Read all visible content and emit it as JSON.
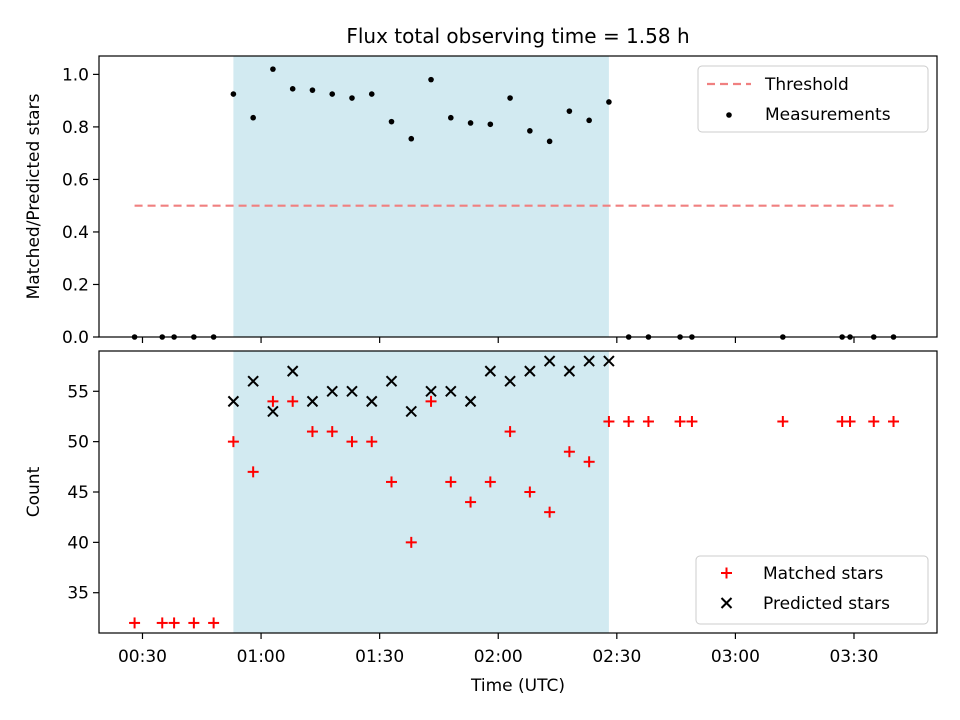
{
  "title": "Flux total observing time = 1.58 h",
  "xlabel": "Time (UTC)",
  "x_ticks": [
    "00:30",
    "01:00",
    "01:30",
    "02:00",
    "02:30",
    "03:00",
    "03:30"
  ],
  "colors": {
    "threshold": "#f08080",
    "measurements": "#000000",
    "matched": "#ff0000",
    "predicted": "#000000",
    "span": "#add8e6"
  },
  "chart_data": [
    {
      "type": "scatter",
      "ylabel": "Matched/Predicted stars",
      "xlim": [
        "00:19",
        "03:51"
      ],
      "ylim": [
        0,
        1.07
      ],
      "y_ticks": [
        "0.0",
        "0.2",
        "0.4",
        "0.6",
        "0.8",
        "1.0"
      ],
      "shaded_span": [
        "00:53",
        "02:28"
      ],
      "legend_position": "upper right",
      "grid": false,
      "threshold": {
        "name": "Threshold",
        "y": 0.5,
        "x_range": [
          "00:28",
          "03:40"
        ]
      },
      "series": [
        {
          "name": "Measurements",
          "points": [
            [
              "00:28",
              0.0
            ],
            [
              "00:35",
              0.0
            ],
            [
              "00:38",
              0.0
            ],
            [
              "00:43",
              0.0
            ],
            [
              "00:48",
              0.0
            ],
            [
              "00:53",
              0.925
            ],
            [
              "00:58",
              0.835
            ],
            [
              "01:03",
              1.02
            ],
            [
              "01:08",
              0.945
            ],
            [
              "01:13",
              0.94
            ],
            [
              "01:18",
              0.925
            ],
            [
              "01:23",
              0.91
            ],
            [
              "01:28",
              0.925
            ],
            [
              "01:33",
              0.82
            ],
            [
              "01:38",
              0.755
            ],
            [
              "01:43",
              0.98
            ],
            [
              "01:48",
              0.835
            ],
            [
              "01:53",
              0.815
            ],
            [
              "01:58",
              0.81
            ],
            [
              "02:03",
              0.91
            ],
            [
              "02:08",
              0.785
            ],
            [
              "02:13",
              0.745
            ],
            [
              "02:18",
              0.86
            ],
            [
              "02:23",
              0.825
            ],
            [
              "02:28",
              0.895
            ],
            [
              "02:33",
              0.0
            ],
            [
              "02:38",
              0.0
            ],
            [
              "02:46",
              0.0
            ],
            [
              "02:49",
              0.0
            ],
            [
              "03:12",
              0.0
            ],
            [
              "03:27",
              0.0
            ],
            [
              "03:29",
              0.0
            ],
            [
              "03:35",
              0.0
            ],
            [
              "03:40",
              0.0
            ]
          ]
        }
      ]
    },
    {
      "type": "scatter",
      "ylabel": "Count",
      "xlim": [
        "00:19",
        "03:51"
      ],
      "ylim": [
        31,
        59
      ],
      "y_ticks": [
        "35",
        "40",
        "45",
        "50",
        "55"
      ],
      "shaded_span": [
        "00:53",
        "02:28"
      ],
      "legend_position": "lower right",
      "grid": false,
      "series": [
        {
          "name": "Matched stars",
          "marker": "+",
          "points": [
            [
              "00:28",
              32
            ],
            [
              "00:35",
              32
            ],
            [
              "00:38",
              32
            ],
            [
              "00:43",
              32
            ],
            [
              "00:48",
              32
            ],
            [
              "00:53",
              50
            ],
            [
              "00:58",
              47
            ],
            [
              "01:03",
              54
            ],
            [
              "01:08",
              54
            ],
            [
              "01:13",
              51
            ],
            [
              "01:18",
              51
            ],
            [
              "01:23",
              50
            ],
            [
              "01:28",
              50
            ],
            [
              "01:33",
              46
            ],
            [
              "01:38",
              40
            ],
            [
              "01:43",
              54
            ],
            [
              "01:48",
              46
            ],
            [
              "01:53",
              44
            ],
            [
              "01:58",
              46
            ],
            [
              "02:03",
              51
            ],
            [
              "02:08",
              45
            ],
            [
              "02:13",
              43
            ],
            [
              "02:18",
              49
            ],
            [
              "02:23",
              48
            ],
            [
              "02:28",
              52
            ],
            [
              "02:33",
              52
            ],
            [
              "02:38",
              52
            ],
            [
              "02:46",
              52
            ],
            [
              "02:49",
              52
            ],
            [
              "03:12",
              52
            ],
            [
              "03:27",
              52
            ],
            [
              "03:29",
              52
            ],
            [
              "03:35",
              52
            ],
            [
              "03:40",
              52
            ]
          ]
        },
        {
          "name": "Predicted stars",
          "marker": "x",
          "points": [
            [
              "00:53",
              54
            ],
            [
              "00:58",
              56
            ],
            [
              "01:03",
              53
            ],
            [
              "01:08",
              57
            ],
            [
              "01:13",
              54
            ],
            [
              "01:18",
              55
            ],
            [
              "01:23",
              55
            ],
            [
              "01:28",
              54
            ],
            [
              "01:33",
              56
            ],
            [
              "01:38",
              53
            ],
            [
              "01:43",
              55
            ],
            [
              "01:48",
              55
            ],
            [
              "01:53",
              54
            ],
            [
              "01:58",
              57
            ],
            [
              "02:03",
              56
            ],
            [
              "02:08",
              57
            ],
            [
              "02:13",
              58
            ],
            [
              "02:18",
              57
            ],
            [
              "02:23",
              58
            ],
            [
              "02:28",
              58
            ]
          ]
        }
      ]
    }
  ]
}
